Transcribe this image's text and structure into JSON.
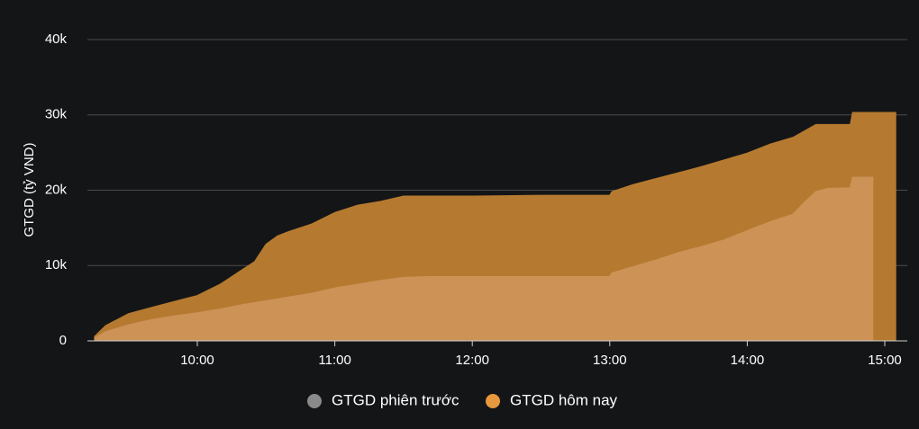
{
  "chart_data": {
    "type": "area",
    "title": "",
    "xlabel": "",
    "ylabel": "GTGD (tỷ VND)",
    "ylim": [
      0,
      40000
    ],
    "yticks": [
      0,
      10000,
      20000,
      30000,
      40000
    ],
    "ytick_labels": [
      "0",
      "10k",
      "20k",
      "30k",
      "40k"
    ],
    "xticks": [
      "10:00",
      "11:00",
      "12:00",
      "13:00",
      "14:00",
      "15:00"
    ],
    "grid": "horizontal",
    "legend_position": "bottom-center",
    "series": [
      {
        "name": "GTGD phiên trước",
        "color": "#8a8a8a",
        "fill": "#b57a30",
        "x": [
          "09:15",
          "09:20",
          "09:30",
          "09:40",
          "09:50",
          "10:00",
          "10:10",
          "10:20",
          "10:25",
          "10:30",
          "10:35",
          "10:40",
          "10:50",
          "11:00",
          "11:10",
          "11:20",
          "11:30",
          "11:40",
          "12:00",
          "12:30",
          "13:00",
          "13:01",
          "13:10",
          "13:20",
          "13:30",
          "13:40",
          "13:50",
          "14:00",
          "14:10",
          "14:20",
          "14:30",
          "14:45",
          "14:46",
          "15:00",
          "15:05"
        ],
        "values": [
          500,
          2000,
          3600,
          4400,
          5200,
          6000,
          7500,
          9500,
          10500,
          12800,
          13900,
          14500,
          15500,
          17000,
          18000,
          18500,
          19200,
          19200,
          19200,
          19300,
          19300,
          19800,
          20700,
          21500,
          22300,
          23100,
          24000,
          24900,
          26100,
          27000,
          28700,
          28700,
          30300,
          30300,
          30300
        ]
      },
      {
        "name": "GTGD hôm nay",
        "color": "#e8983e",
        "fill": "#cc9256",
        "x": [
          "09:15",
          "09:20",
          "09:30",
          "09:40",
          "09:50",
          "10:00",
          "10:10",
          "10:20",
          "10:30",
          "10:40",
          "10:50",
          "11:00",
          "11:10",
          "11:20",
          "11:30",
          "11:40",
          "12:00",
          "12:30",
          "13:00",
          "13:01",
          "13:10",
          "13:20",
          "13:30",
          "13:40",
          "13:50",
          "14:00",
          "14:10",
          "14:20",
          "14:25",
          "14:30",
          "14:35",
          "14:45",
          "14:46",
          "14:55"
        ],
        "values": [
          300,
          1200,
          2100,
          2800,
          3300,
          3700,
          4200,
          4800,
          5300,
          5800,
          6300,
          7000,
          7500,
          8000,
          8400,
          8500,
          8500,
          8500,
          8500,
          9000,
          9800,
          10700,
          11700,
          12500,
          13400,
          14600,
          15800,
          16800,
          18400,
          19800,
          20200,
          20300,
          21700,
          21700
        ]
      }
    ]
  }
}
